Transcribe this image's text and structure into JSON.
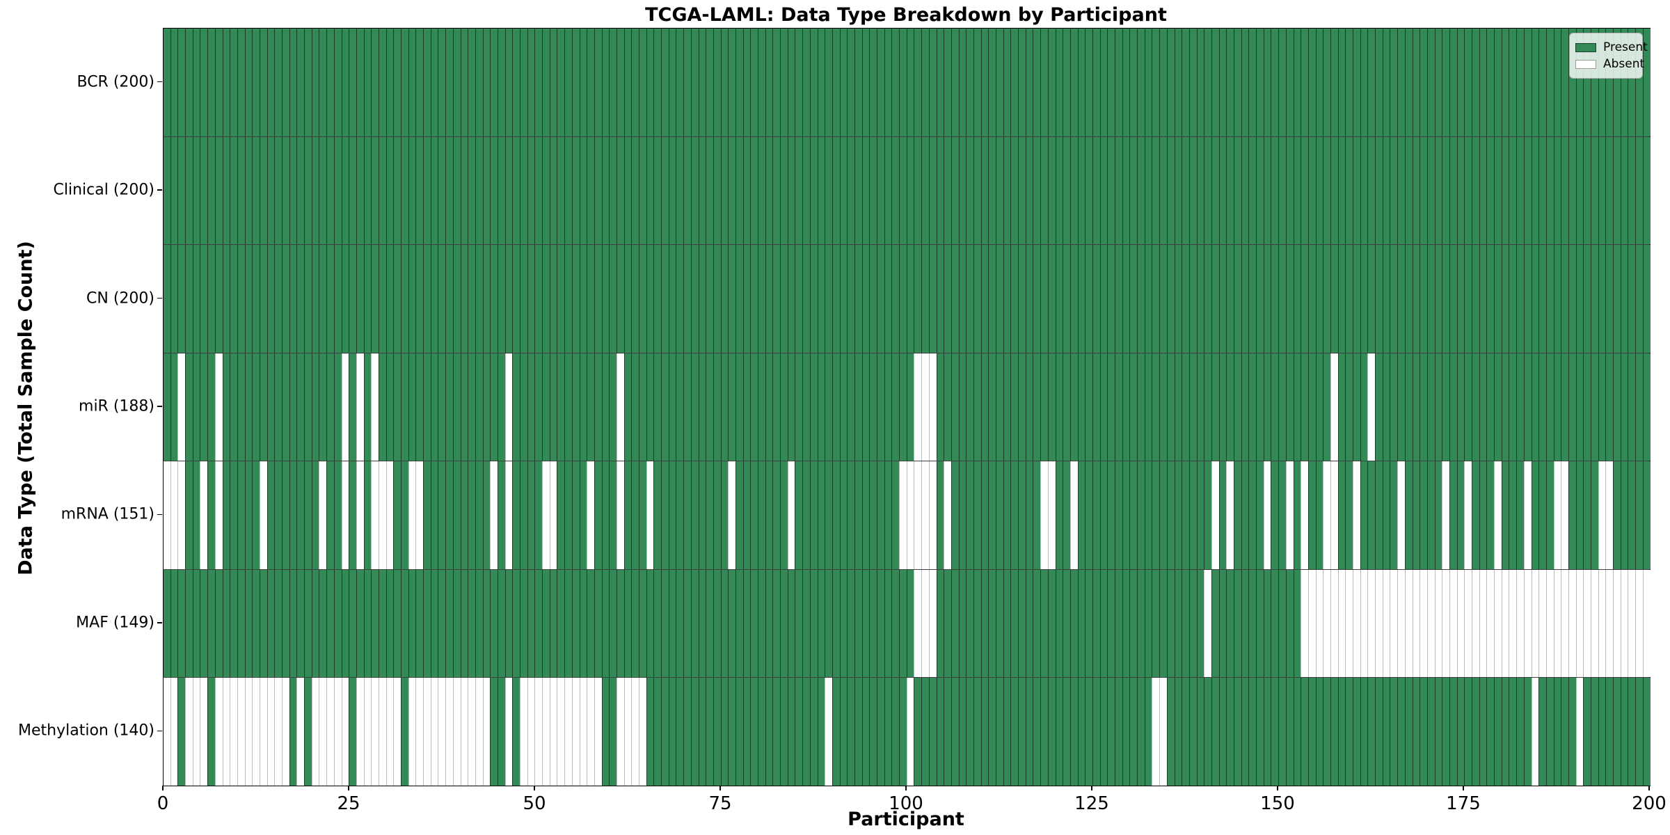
{
  "chart_data": {
    "type": "heatmap",
    "title": "TCGA-LAML: Data Type Breakdown by Participant",
    "xlabel": "Participant",
    "ylabel": "Data Type (Total Sample Count)",
    "n_participants": 200,
    "x_ticks": [
      0,
      25,
      50,
      75,
      100,
      125,
      150,
      175,
      200
    ],
    "legend_position": "upper right",
    "grid": "cell-edges",
    "colors": {
      "present": "#338a57",
      "absent": "#ffffff",
      "present_edge": "rgba(0,0,0,0.55)",
      "absent_edge": "#bdbdbd",
      "row_separator": "rgba(0,0,0,0.75)",
      "plot_border": "#000000"
    },
    "legend": [
      {
        "label": "Present",
        "color": "#338a57"
      },
      {
        "label": "Absent",
        "color": "#ffffff"
      }
    ],
    "rows": [
      {
        "name": "BCR",
        "label": "BCR (200)",
        "total": 200,
        "absent": []
      },
      {
        "name": "Clinical",
        "label": "Clinical (200)",
        "total": 200,
        "absent": []
      },
      {
        "name": "CN",
        "label": "CN (200)",
        "total": 200,
        "absent": []
      },
      {
        "name": "miR",
        "label": "miR (188)",
        "total": 188,
        "absent": [
          2,
          7,
          24,
          26,
          28,
          46,
          61,
          101,
          102,
          103,
          157,
          162
        ]
      },
      {
        "name": "mRNA",
        "label": "mRNA (151)",
        "total": 151,
        "absent": [
          0,
          1,
          2,
          5,
          7,
          13,
          21,
          24,
          26,
          28,
          29,
          30,
          33,
          34,
          44,
          46,
          51,
          52,
          57,
          61,
          65,
          76,
          84,
          99,
          100,
          101,
          102,
          103,
          105,
          118,
          119,
          122,
          141,
          143,
          148,
          151,
          153,
          156,
          157,
          160,
          166,
          172,
          175,
          179,
          183,
          187,
          188,
          193,
          194
        ]
      },
      {
        "name": "MAF",
        "label": "MAF (149)",
        "total": 149,
        "absent": [
          101,
          102,
          103,
          140,
          153,
          154,
          155,
          156,
          157,
          158,
          159,
          160,
          161,
          162,
          163,
          164,
          165,
          166,
          167,
          168,
          169,
          170,
          171,
          172,
          173,
          174,
          175,
          176,
          177,
          178,
          179,
          180,
          181,
          182,
          183,
          184,
          185,
          186,
          187,
          188,
          189,
          190,
          191,
          192,
          193,
          194,
          195,
          196,
          197,
          198,
          199
        ]
      },
      {
        "name": "Methylation",
        "label": "Methylation (140)",
        "total": 140,
        "absent": [
          0,
          1,
          3,
          4,
          5,
          7,
          8,
          9,
          10,
          11,
          12,
          13,
          14,
          15,
          16,
          18,
          20,
          21,
          22,
          23,
          24,
          26,
          27,
          28,
          29,
          30,
          31,
          33,
          34,
          35,
          36,
          37,
          38,
          39,
          40,
          41,
          42,
          43,
          46,
          48,
          49,
          50,
          51,
          52,
          53,
          54,
          55,
          56,
          57,
          58,
          61,
          62,
          63,
          64,
          89,
          100,
          133,
          134,
          184,
          190
        ]
      }
    ]
  }
}
